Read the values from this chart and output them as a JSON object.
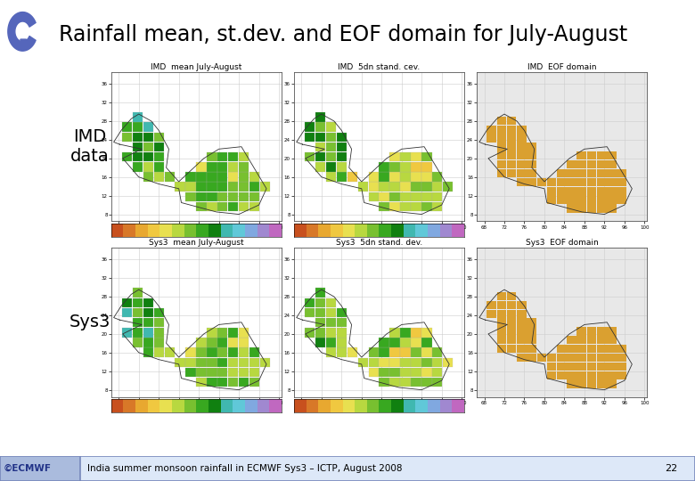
{
  "title": "Rainfall mean, st.dev. and EOF domain for July-August",
  "footer_text": "India summer monsoon rainfall in ECMWF Sys3 – ICTP, August 2008",
  "footer_number": "22",
  "bg_color": "#ffffff",
  "header_line_color": "#5555aa",
  "row_labels": [
    "IMD\ndata",
    "Sys3"
  ],
  "row_label_fontsize": 14,
  "subplot_titles_row0": [
    "IMD  mean July-August",
    "IMD  5dn stand. cev.",
    "IMD  EOF domain"
  ],
  "subplot_titles_row1": [
    "Sys3  mean July-August",
    "Sys3  5dn stand. dev.",
    "Sys3  EOF domain"
  ],
  "subplot_title_fontsize": 6.5,
  "footer_bg": "#dde8f8",
  "footer_border": "#7788bb",
  "ecmwf_box_color": "#aabbdd",
  "ecmwf_text_color": "#223388",
  "title_fontsize": 17,
  "axis_tick_fontsize": 4,
  "lon_min": 66.5,
  "lon_max": 100.5,
  "lat_min": 6.5,
  "lat_max": 38.5,
  "grid_color": "#cccccc",
  "map_colors_mean": [
    "#c8501e",
    "#d87828",
    "#e8a830",
    "#f0c840",
    "#e8e050",
    "#b8d840",
    "#78c030",
    "#38a820",
    "#108010",
    "#40b8b0",
    "#60c8d8",
    "#80a8e0",
    "#a088d0",
    "#c068c0"
  ],
  "map_colors_std": [
    "#c8501e",
    "#d87828",
    "#e8a830",
    "#f0c840",
    "#e8e050",
    "#b8d840",
    "#78c030",
    "#38a820",
    "#108010",
    "#40b8b0",
    "#60c8d8",
    "#80a8e0",
    "#a088d0",
    "#c068c0"
  ],
  "eof_color": "#daa030",
  "eof_bg": "#e8e8e8",
  "panel_bg": "#ffffff",
  "colorbar_colors": [
    "#c8501e",
    "#d87828",
    "#e8a830",
    "#f0c840",
    "#e8e050",
    "#b8d840",
    "#78c030",
    "#38a820",
    "#108010",
    "#40b8b0",
    "#60c8d8",
    "#80a8e0",
    "#a088d0",
    "#c068c0"
  ]
}
